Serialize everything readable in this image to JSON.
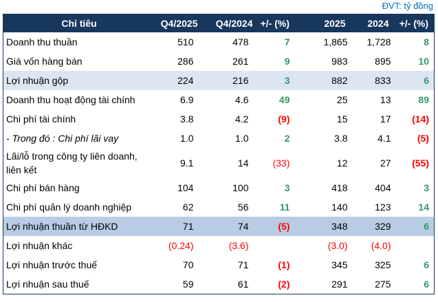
{
  "unit_label": "ĐVT: tỷ đồng",
  "colors": {
    "header_bg": "#17375D",
    "border": "#17375D",
    "highlight_light": "#DCE6F1",
    "highlight_dark": "#B8CCE4",
    "positive": "#339966",
    "negative": "#FF0000",
    "unit_text": "#0070C0"
  },
  "table": {
    "columns": [
      "Chỉ tiêu",
      "Q4/2025",
      "Q4/2024",
      "+/- (%)",
      "2025",
      "2024",
      "+/- (%)"
    ],
    "rows": [
      {
        "label": "Doanh thu thuần",
        "highlight": null,
        "italic": false,
        "cells": [
          {
            "t": "510"
          },
          {
            "t": "478"
          },
          {
            "t": "7",
            "c": "green",
            "b": true
          },
          {
            "t": "1,865"
          },
          {
            "t": "1,728"
          },
          {
            "t": "8",
            "c": "green",
            "b": true
          }
        ]
      },
      {
        "label": "Giá vốn hàng bán",
        "highlight": null,
        "italic": false,
        "cells": [
          {
            "t": "286"
          },
          {
            "t": "261"
          },
          {
            "t": "9",
            "c": "green",
            "b": true
          },
          {
            "t": "983"
          },
          {
            "t": "895"
          },
          {
            "t": "10",
            "c": "green",
            "b": true
          }
        ]
      },
      {
        "label": "Lợi nhuận gộp",
        "highlight": "light",
        "italic": false,
        "cells": [
          {
            "t": "224"
          },
          {
            "t": "216"
          },
          {
            "t": "3",
            "c": "green",
            "b": true
          },
          {
            "t": "882"
          },
          {
            "t": "833"
          },
          {
            "t": "6",
            "c": "green",
            "b": true
          }
        ]
      },
      {
        "label": "Doanh thu hoạt động tài chính",
        "highlight": null,
        "italic": false,
        "cells": [
          {
            "t": "6.9"
          },
          {
            "t": "4.6"
          },
          {
            "t": "49",
            "c": "green",
            "b": true
          },
          {
            "t": "25"
          },
          {
            "t": "13"
          },
          {
            "t": "89",
            "c": "green",
            "b": true
          }
        ]
      },
      {
        "label": "Chi phí tài chính",
        "highlight": null,
        "italic": false,
        "cells": [
          {
            "t": "3.8"
          },
          {
            "t": "4.2"
          },
          {
            "t": "(9)",
            "c": "red",
            "b": true
          },
          {
            "t": "15"
          },
          {
            "t": "17"
          },
          {
            "t": "(14)",
            "c": "red",
            "b": true
          }
        ]
      },
      {
        "label": "- Trong đó : Chi phí lãi vay",
        "highlight": null,
        "italic": true,
        "cells": [
          {
            "t": "1.0"
          },
          {
            "t": "1.0"
          },
          {
            "t": "2",
            "c": "green",
            "b": true
          },
          {
            "t": "3.8"
          },
          {
            "t": "4.1"
          },
          {
            "t": "(5)",
            "c": "red",
            "b": true
          }
        ]
      },
      {
        "label": "Lãi/lỗ trong công ty liên doanh, liên kết",
        "highlight": null,
        "italic": false,
        "cells": [
          {
            "t": "9.1"
          },
          {
            "t": "14"
          },
          {
            "t": "(33)",
            "c": "red",
            "b": false
          },
          {
            "t": "12"
          },
          {
            "t": "27"
          },
          {
            "t": "(55)",
            "c": "red",
            "b": true
          }
        ]
      },
      {
        "label": "Chi phí bán hàng",
        "highlight": null,
        "italic": false,
        "cells": [
          {
            "t": "104"
          },
          {
            "t": "100"
          },
          {
            "t": "3",
            "c": "green",
            "b": true
          },
          {
            "t": "418"
          },
          {
            "t": "404"
          },
          {
            "t": "3",
            "c": "green",
            "b": true
          }
        ]
      },
      {
        "label": "Chi phí quản lý doanh nghiệp",
        "highlight": null,
        "italic": false,
        "cells": [
          {
            "t": "62"
          },
          {
            "t": "56"
          },
          {
            "t": "11",
            "c": "green",
            "b": true
          },
          {
            "t": "140"
          },
          {
            "t": "123"
          },
          {
            "t": "14",
            "c": "green",
            "b": true
          }
        ]
      },
      {
        "label": "Lợi nhuận thuần từ HĐKD",
        "highlight": "dark",
        "italic": false,
        "cells": [
          {
            "t": "71"
          },
          {
            "t": "74"
          },
          {
            "t": "(5)",
            "c": "red",
            "b": true
          },
          {
            "t": "348"
          },
          {
            "t": "329"
          },
          {
            "t": "6",
            "c": "green",
            "b": true
          }
        ]
      },
      {
        "label": "Lợi nhuận khác",
        "highlight": null,
        "italic": false,
        "cells": [
          {
            "t": "(0.24)",
            "c": "red"
          },
          {
            "t": "(3.6)",
            "c": "red"
          },
          {
            "t": ""
          },
          {
            "t": "(3.0)",
            "c": "red"
          },
          {
            "t": "(4.0)",
            "c": "red"
          },
          {
            "t": ""
          }
        ]
      },
      {
        "label": "Lợi nhuận trước thuế",
        "highlight": null,
        "italic": false,
        "cells": [
          {
            "t": "70"
          },
          {
            "t": "71"
          },
          {
            "t": "(1)",
            "c": "red",
            "b": true
          },
          {
            "t": "345"
          },
          {
            "t": "325"
          },
          {
            "t": "6",
            "c": "green",
            "b": true
          }
        ]
      },
      {
        "label": "Lợi nhuận sau thuế",
        "highlight": null,
        "italic": false,
        "cells": [
          {
            "t": "59"
          },
          {
            "t": "61"
          },
          {
            "t": "(2)",
            "c": "red",
            "b": true
          },
          {
            "t": "291"
          },
          {
            "t": "275"
          },
          {
            "t": "6",
            "c": "green",
            "b": true
          }
        ]
      }
    ]
  }
}
